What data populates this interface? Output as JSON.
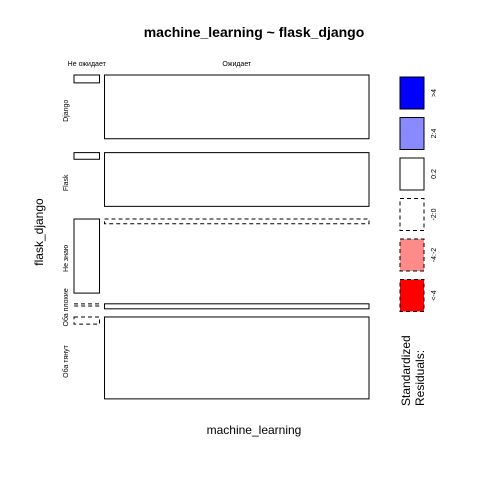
{
  "chart_data": {
    "type": "mosaic",
    "title": "machine_learning ~ flask_django",
    "xlabel": "machine_learning",
    "ylabel": "flask_django",
    "x_levels": [
      "Не ожидает",
      "Ожидает"
    ],
    "y_levels": [
      "Django",
      "Flask",
      "Не знаю",
      "Оба плохие",
      "Оба тянут"
    ],
    "x_proportions": [
      0.088,
      0.912
    ],
    "y_proportions": [
      0.2333,
      0.1967,
      0.2567,
      0.0233,
      0.29
    ],
    "cell_conditional_proportions": [
      [
        0.11,
        0.89
      ],
      [
        0.11,
        0.89
      ],
      [
        0.94,
        0.06
      ],
      [
        0.3,
        0.7
      ],
      [
        0.08,
        0.92
      ]
    ],
    "cell_residual_class": [
      [
        "0:2",
        "0:2"
      ],
      [
        "0:2",
        "0:2"
      ],
      [
        "0:2",
        "-2:0"
      ],
      [
        "-2:0",
        "0:2"
      ],
      [
        "-2:0",
        "0:2"
      ]
    ],
    "legend": {
      "title_line1": "Standardized",
      "title_line2": "Residuals:",
      "items": [
        {
          "label": ">4",
          "fill": "#0000ff",
          "dashed": false
        },
        {
          "label": "2:4",
          "fill": "#8a8aff",
          "dashed": false
        },
        {
          "label": "0:2",
          "fill": "#ffffff",
          "dashed": false
        },
        {
          "label": "-2:0",
          "fill": "#ffffff",
          "dashed": true
        },
        {
          "label": "-4:-2",
          "fill": "#ff8a8a",
          "dashed": true
        },
        {
          "label": "<-4",
          "fill": "#ff0000",
          "dashed": true
        }
      ]
    }
  }
}
